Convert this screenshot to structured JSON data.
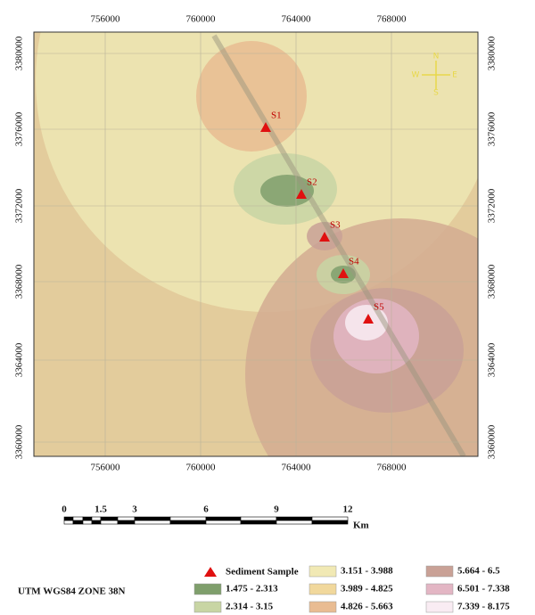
{
  "map": {
    "x_labels": [
      "756000",
      "760000",
      "764000",
      "768000"
    ],
    "y_labels": [
      "3380000",
      "3376000",
      "3372000",
      "3368000",
      "3364000",
      "3360000"
    ],
    "compass": [
      "N",
      "E",
      "S",
      "W"
    ],
    "samples": [
      "S1",
      "S2",
      "S3",
      "S4",
      "S5"
    ],
    "scale": {
      "ticks": [
        "0",
        "1.5",
        "3",
        "6",
        "9",
        "12"
      ],
      "unit": "Km"
    },
    "legend": {
      "sample": "Sediment Sample",
      "classes": [
        {
          "label": "1.475 - 2.313",
          "color": "#7f9f6c"
        },
        {
          "label": "2.314 - 3.15",
          "color": "#c8d5a4"
        },
        {
          "label": "3.151 - 3.988",
          "color": "#f1e9b4"
        },
        {
          "label": "3.989 - 4.825",
          "color": "#f1d89c"
        },
        {
          "label": "4.826 - 5.663",
          "color": "#e9bc92"
        },
        {
          "label": "5.664 - 6.5",
          "color": "#c9a196"
        },
        {
          "label": "6.501 - 7.338",
          "color": "#e3b6c4"
        },
        {
          "label": "7.339 - 8.175",
          "color": "#f9ecf3"
        }
      ]
    },
    "projection": "UTM WGS84 ZONE 38N"
  }
}
